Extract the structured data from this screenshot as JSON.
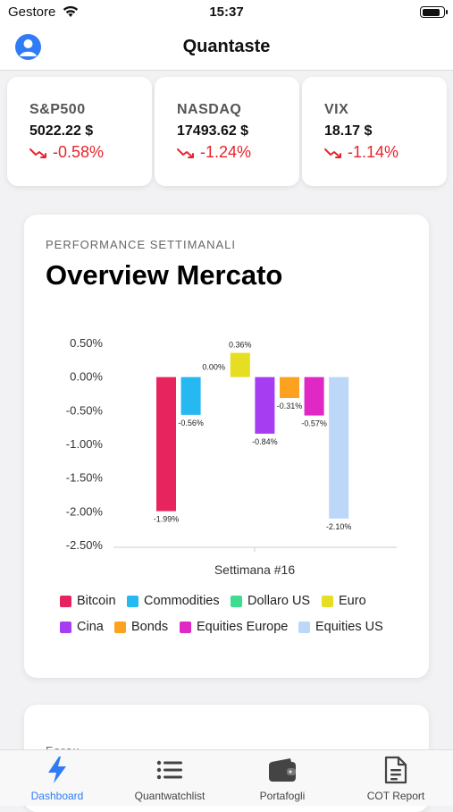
{
  "status_bar": {
    "carrier": "Gestore",
    "time": "15:37",
    "battery_level": 0.9
  },
  "header": {
    "title": "Quantaste"
  },
  "tickers": [
    {
      "name": "S&P500",
      "price": "5022.22 $",
      "change": "-0.58%"
    },
    {
      "name": "NASDAQ",
      "price": "17493.62 $",
      "change": "-1.24%"
    },
    {
      "name": "VIX",
      "price": "18.17 $",
      "change": "-1.14%"
    }
  ],
  "performance": {
    "eyebrow": "PERFORMANCE SETTIMANALI",
    "title": "Overview Mercato"
  },
  "chart_data": {
    "type": "bar",
    "xlabel": "Settimana #16",
    "ylabel": "",
    "ylim": [
      -2.5,
      0.5
    ],
    "yticks": [
      "0.50%",
      "0.00%",
      "-0.50%",
      "-1.00%",
      "-1.50%",
      "-2.00%",
      "-2.50%"
    ],
    "categories": [
      "Settimana #16"
    ],
    "series": [
      {
        "name": "Bitcoin",
        "value": -1.99,
        "label": "-1.99%",
        "color": "#e8245f"
      },
      {
        "name": "Commodities",
        "value": -0.56,
        "label": "-0.56%",
        "color": "#26b8f0"
      },
      {
        "name": "Dollaro US",
        "value": 0.0,
        "label": "0.00%",
        "color": "#3fdc8f"
      },
      {
        "name": "Euro",
        "value": 0.36,
        "label": "0.36%",
        "color": "#e6de22"
      },
      {
        "name": "Cina",
        "value": -0.84,
        "label": "-0.84%",
        "color": "#a63df0"
      },
      {
        "name": "Bonds",
        "value": -0.31,
        "label": "-0.31%",
        "color": "#fca21f"
      },
      {
        "name": "Equities Europe",
        "value": -0.57,
        "label": "-0.57%",
        "color": "#e028c4"
      },
      {
        "name": "Equities US",
        "value": -2.1,
        "label": "-2.10%",
        "color": "#bcd7f8"
      }
    ],
    "legend_position": "bottom",
    "grid": false
  },
  "card3": {
    "label": "Forex"
  },
  "tab_bar": {
    "tabs": [
      {
        "label": "Dashboard",
        "icon": "bolt-icon",
        "active": true
      },
      {
        "label": "Quantwatchlist",
        "icon": "list-icon",
        "active": false
      },
      {
        "label": "Portafogli",
        "icon": "wallet-icon",
        "active": false
      },
      {
        "label": "COT Report",
        "icon": "document-icon",
        "active": false
      }
    ]
  },
  "colors": {
    "accent": "#2f7cf6",
    "negative": "#e8232d"
  }
}
